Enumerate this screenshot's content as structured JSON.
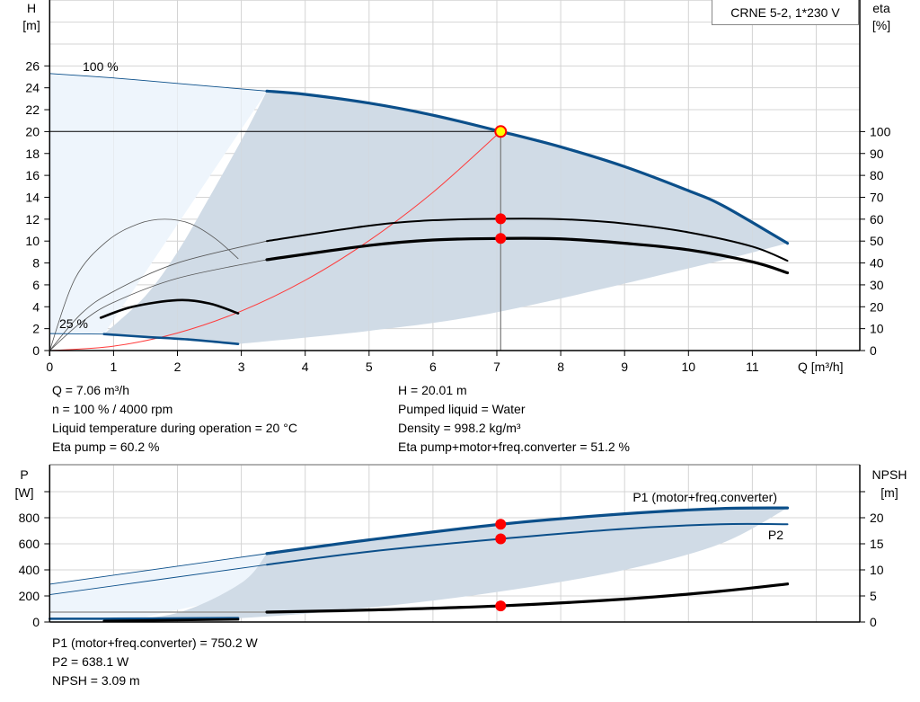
{
  "model_label": "CRNE 5-2, 1*230 V",
  "info_top_left": [
    "Q = 7.06 m³/h",
    "n = 100 % / 4000 rpm",
    "Liquid temperature during operation = 20 °C",
    "Eta pump = 60.2 %"
  ],
  "info_top_right": [
    "H = 20.01 m",
    "Pumped liquid = Water",
    "Density = 998.2 kg/m³",
    "Eta pump+motor+freq.converter = 51.2 %"
  ],
  "info_bottom": [
    "P1 (motor+freq.converter) = 750.2 W",
    "P2 = 638.1 W",
    "NPSH = 3.09 m"
  ],
  "colors": {
    "pump_curve": "#0b4f8a",
    "efficiency": "#000000",
    "system_curve": "#ff3b3b",
    "duty_point": "#ff0000",
    "duty_point_head": "#ffff00",
    "range_light": "#eef5fc",
    "range_dark": "#d0dbe6",
    "grid": "#d4d4d4"
  },
  "chart_data": [
    {
      "type": "line",
      "xlabel": "Q [m³/h]",
      "ylabel": [
        "H",
        "[m]"
      ],
      "y2label": [
        "eta",
        "[%]"
      ],
      "xlim": [
        0,
        12.6
      ],
      "ylim": [
        0,
        32
      ],
      "y2lim": [
        0,
        160
      ],
      "xticks": [
        0,
        1,
        2,
        3,
        4,
        5,
        6,
        7,
        8,
        9,
        10,
        11
      ],
      "yticks": [
        0,
        2,
        4,
        6,
        8,
        10,
        12,
        14,
        16,
        18,
        20,
        22,
        24,
        26
      ],
      "y2ticks": [
        0,
        10,
        20,
        30,
        40,
        50,
        60,
        70,
        80,
        90,
        100
      ],
      "grid": true,
      "annotations": [
        "100 %",
        "25 %"
      ],
      "series": [
        {
          "key": "head_100",
          "axis": "H",
          "x": [
            0,
            1,
            2,
            3.4,
            4,
            5,
            6,
            7.06,
            8,
            9,
            10,
            10.55,
            11.55
          ],
          "y": [
            25.3,
            24.9,
            24.4,
            23.7,
            23.4,
            22.6,
            21.5,
            20.01,
            18.6,
            16.8,
            14.6,
            13.2,
            9.8
          ]
        },
        {
          "key": "head_25",
          "axis": "H",
          "x": [
            0,
            0.85,
            1.5,
            2.2,
            2.95
          ],
          "y": [
            1.55,
            1.5,
            1.25,
            1.0,
            0.6
          ]
        },
        {
          "key": "eta_pump",
          "axis": "eta",
          "x": [
            0,
            0.5,
            1,
            2,
            3.4,
            5,
            6,
            7.06,
            8,
            9,
            10,
            11,
            11.55
          ],
          "y": [
            0,
            17,
            27,
            40,
            50,
            57,
            59.5,
            60.2,
            60,
            58,
            54,
            47.5,
            41
          ]
        },
        {
          "key": "eta_total",
          "axis": "eta",
          "x": [
            0,
            0.5,
            1,
            2,
            3.4,
            5,
            6,
            7.06,
            8,
            9,
            10,
            11,
            11.55
          ],
          "y": [
            0,
            13,
            22,
            33,
            41.5,
            48,
            50.5,
            51.2,
            51,
            49,
            46,
            40.5,
            35.5
          ]
        },
        {
          "key": "eta_pump_25",
          "axis": "eta",
          "x": [
            0,
            0.4,
            0.9,
            1.4,
            1.8,
            2.2,
            2.6,
            2.95
          ],
          "y": [
            0,
            33,
            50,
            58,
            60,
            58,
            51,
            42
          ]
        },
        {
          "key": "eta_total_25",
          "axis": "eta",
          "x": [
            0.8,
            1.3,
            2.0,
            2.5,
            2.95
          ],
          "y": [
            15,
            20,
            23,
            21.5,
            17
          ]
        },
        {
          "key": "system_curve",
          "axis": "H",
          "x": [
            0,
            1,
            2,
            3,
            4,
            5,
            6,
            7.06
          ],
          "y": [
            0,
            0.4,
            1.6,
            3.61,
            6.42,
            10.04,
            14.45,
            20.01
          ]
        }
      ],
      "duty_point": {
        "Q": 7.06,
        "H": 20.01,
        "eta_pump": 60.2,
        "eta_total": 51.2
      }
    },
    {
      "type": "line",
      "ylabel": [
        "P",
        "[W]"
      ],
      "y2label": [
        "NPSH",
        "[m]"
      ],
      "xlim": [
        0,
        12.6
      ],
      "ylim": [
        0,
        1200
      ],
      "y2lim": [
        0,
        30
      ],
      "yticks": [
        0,
        200,
        400,
        600,
        800
      ],
      "y2ticks": [
        0,
        5,
        10,
        15,
        20
      ],
      "grid": true,
      "series": [
        {
          "key": "p1",
          "name": "P1 (motor+freq.converter)",
          "axis": "P",
          "x": [
            0,
            3.4,
            5,
            7.06,
            9,
            10.5,
            11.55
          ],
          "y": [
            290,
            525,
            630,
            750,
            830,
            870,
            875
          ]
        },
        {
          "key": "p2",
          "name": "P2",
          "axis": "P",
          "x": [
            0,
            3.4,
            5,
            7.06,
            9,
            10.5,
            11.55
          ],
          "y": [
            210,
            440,
            540,
            638,
            715,
            750,
            750
          ]
        },
        {
          "key": "npsh",
          "axis": "NPSH",
          "x": [
            3.4,
            5,
            7.06,
            9,
            10.5,
            11.55
          ],
          "y": [
            1.9,
            2.3,
            3.09,
            4.4,
            5.9,
            7.3
          ]
        },
        {
          "key": "p1_25",
          "axis": "P",
          "x": [
            0,
            0.85,
            2.95
          ],
          "y": [
            25,
            25,
            30
          ]
        },
        {
          "key": "p2_25",
          "axis": "P",
          "x": [
            0.85,
            2.95
          ],
          "y": [
            8,
            20
          ]
        }
      ],
      "duty_point": {
        "Q": 7.06,
        "P1": 750.2,
        "P2": 638.1,
        "NPSH": 3.09
      }
    }
  ]
}
